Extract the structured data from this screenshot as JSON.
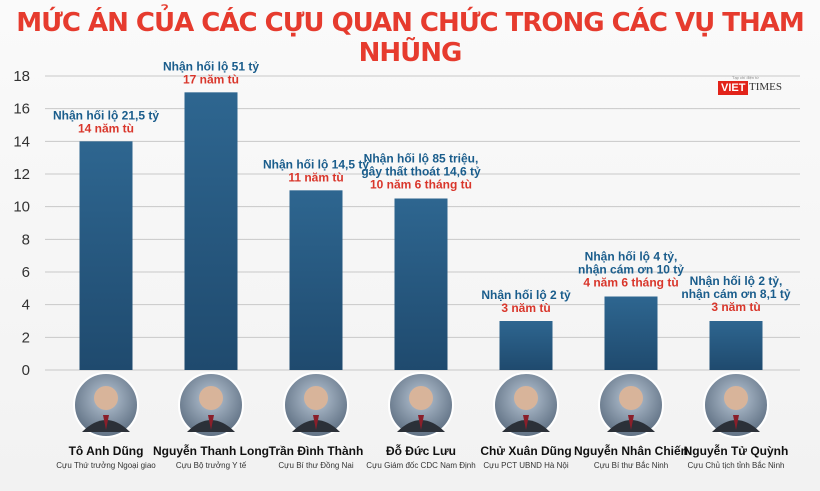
{
  "chart_data": {
    "type": "bar",
    "title": "MỨC ÁN CỦA CÁC CỰU QUAN CHỨC TRONG CÁC VỤ THAM NHŨNG",
    "ylim": [
      0,
      18
    ],
    "yticks": [
      0,
      2,
      4,
      6,
      8,
      10,
      12,
      14,
      16,
      18
    ],
    "grid": true,
    "bar_color": "#2a5d86",
    "categories": [
      "Tô Anh Dũng",
      "Nguyễn Thanh Long",
      "Trần Đình Thành",
      "Đỗ Đức Lưu",
      "Chử Xuân Dũng",
      "Nguyễn Nhân Chiến",
      "Nguyễn Tử Quỳnh"
    ],
    "roles": [
      "Cựu Thứ trưởng Ngoại giao",
      "Cựu Bộ trưởng Y tế",
      "Cựu Bí thư Đồng Nai",
      "Cựu Giám đốc CDC Nam Định",
      "Cựu PCT UBND Hà Nội",
      "Cựu Bí thư Bắc Ninh",
      "Cựu Chủ tịch tỉnh Bắc Ninh"
    ],
    "values": [
      14,
      17,
      11,
      10.5,
      3,
      4.5,
      3
    ],
    "annotations": [
      {
        "lines": [
          "Nhận hối lộ 21,5 tỷ"
        ],
        "sentence": "14 năm tù"
      },
      {
        "lines": [
          "Nhận hối lộ 51 tỷ"
        ],
        "sentence": "17 năm tù"
      },
      {
        "lines": [
          "Nhận hối lộ 14,5 tỷ"
        ],
        "sentence": "11 năm tù"
      },
      {
        "lines": [
          "Nhận hối lộ 85 triệu,",
          "gây thất thoát 14,6 tỷ"
        ],
        "sentence": "10 năm 6 tháng tù"
      },
      {
        "lines": [
          "Nhận hối lộ 2 tỷ"
        ],
        "sentence": "3 năm tù"
      },
      {
        "lines": [
          "Nhận hối lộ 4 tỷ,",
          "nhận cám ơn 10 tỷ"
        ],
        "sentence": "4 năm 6 tháng tù"
      },
      {
        "lines": [
          "Nhận hối lộ 2 tỷ,",
          "nhận cám ơn 8,1 tỷ"
        ],
        "sentence": "3 năm tù"
      }
    ]
  },
  "logo": {
    "tagline": "Tạp chí điện tử",
    "brand_a": "VIET",
    "brand_b": "TIMES"
  },
  "colors": {
    "title": "#e63b2e",
    "annotation_a": "#1a5d8c",
    "annotation_b": "#d9362b"
  }
}
